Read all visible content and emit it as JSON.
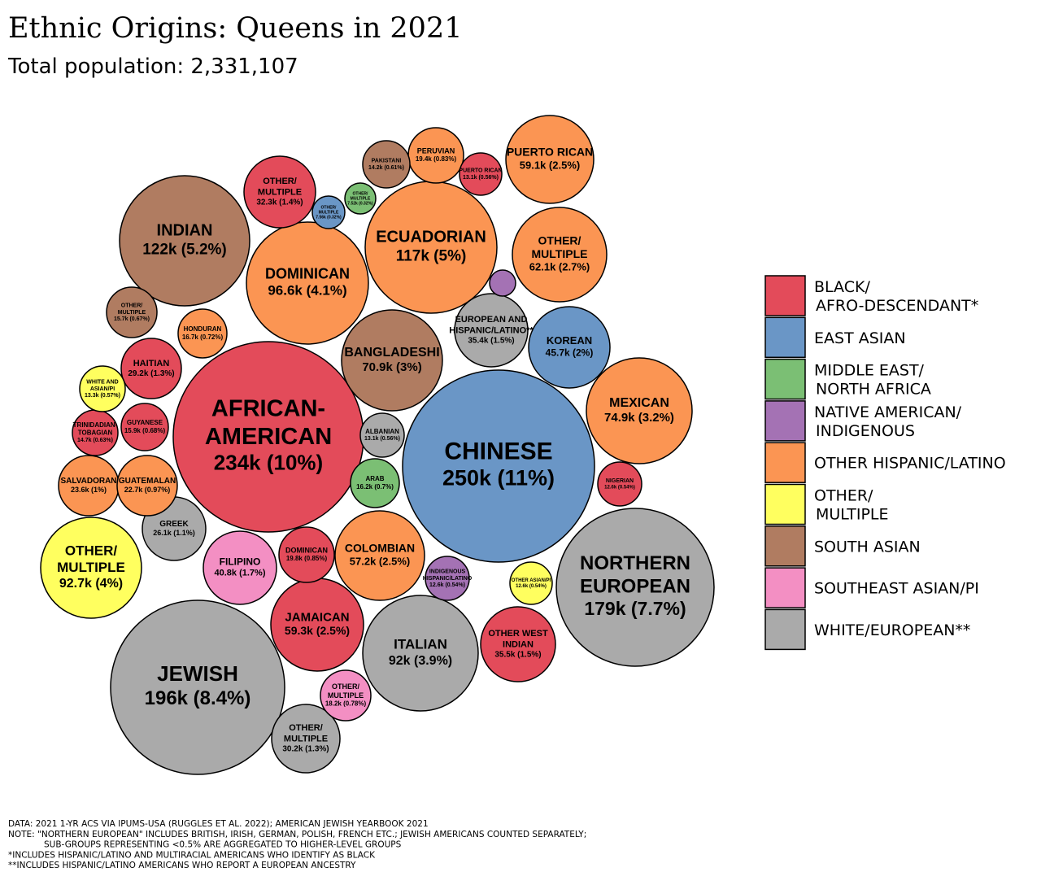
{
  "title": "Ethnic Origins: Queens in 2021",
  "subtitle": "Total population: 2,331,107",
  "colors": {
    "black": "#e34b5a",
    "east_asian": "#6a96c6",
    "mena": "#7bbf74",
    "native": "#a472b4",
    "hispanic": "#fb9553",
    "other": "#ffff5f",
    "south_asian": "#b07c61",
    "southeast_asian": "#f38fc3",
    "white": "#aaaaaa"
  },
  "legend": [
    {
      "group": "black",
      "lines": [
        "BLACK/",
        "AFRO-DESCENDANT*"
      ]
    },
    {
      "group": "east_asian",
      "lines": [
        "EAST ASIAN"
      ]
    },
    {
      "group": "mena",
      "lines": [
        "MIDDLE EAST/",
        "NORTH AFRICA"
      ]
    },
    {
      "group": "native",
      "lines": [
        "NATIVE AMERICAN/",
        "INDIGENOUS"
      ]
    },
    {
      "group": "hispanic",
      "lines": [
        "OTHER HISPANIC/LATINO"
      ]
    },
    {
      "group": "other",
      "lines": [
        "OTHER/",
        "MULTIPLE"
      ]
    },
    {
      "group": "south_asian",
      "lines": [
        "SOUTH ASIAN"
      ]
    },
    {
      "group": "southeast_asian",
      "lines": [
        "SOUTHEAST ASIAN/PI"
      ]
    },
    {
      "group": "white",
      "lines": [
        "WHITE/EUROPEAN**"
      ]
    }
  ],
  "notes": [
    "DATA: 2021 1-YR ACS VIA IPUMS-USA (RUGGLES ET AL. 2022); AMERICAN JEWISH YEARBOOK 2021",
    "NOTE: \"NORTHERN EUROPEAN\" INCLUDES BRITISH, IRISH, GERMAN, POLISH, FRENCH ETC.; JEWISH AMERICANS COUNTED SEPARATELY;",
    "SUB-GROUPS REPRESENTING <0.5% ARE AGGREGATED TO HIGHER-LEVEL GROUPS",
    "*INCLUDES HISPANIC/LATINO AND MULTIRACIAL AMERICANS WHO IDENTIFY AS BLACK",
    "**INCLUDES HISPANIC/LATINO AMERICANS WHO REPORT A EUROPEAN ANCESTRY"
  ],
  "chart_data": {
    "type": "packed-bubble",
    "title": "Ethnic Origins: Queens in 2021",
    "subtitle": "Total population: 2,331,107",
    "bubbles": [
      {
        "label": "CHINESE",
        "value": "250k (11%)",
        "group": "east_asian"
      },
      {
        "label": "AFRICAN-\nAMERICAN",
        "value": "234k (10%)",
        "group": "black"
      },
      {
        "label": "JEWISH",
        "value": "196k (8.4%)",
        "group": "white"
      },
      {
        "label": "NORTHERN\nEUROPEAN",
        "value": "179k (7.7%)",
        "group": "white"
      },
      {
        "label": "INDIAN",
        "value": "122k (5.2%)",
        "group": "south_asian"
      },
      {
        "label": "ECUADORIAN",
        "value": "117k (5%)",
        "group": "hispanic"
      },
      {
        "label": "DOMINICAN",
        "value": "96.6k (4.1%)",
        "group": "hispanic"
      },
      {
        "label": "OTHER/\nMULTIPLE",
        "value": "92.7k (4%)",
        "group": "other"
      },
      {
        "label": "ITALIAN",
        "value": "92k (3.9%)",
        "group": "white"
      },
      {
        "label": "MEXICAN",
        "value": "74.9k (3.2%)",
        "group": "hispanic"
      },
      {
        "label": "BANGLADESHI",
        "value": "70.9k (3%)",
        "group": "south_asian"
      },
      {
        "label": "OTHER/\nMULTIPLE",
        "value": "62.1k (2.7%)",
        "group": "hispanic"
      },
      {
        "label": "JAMAICAN",
        "value": "59.3k (2.5%)",
        "group": "black"
      },
      {
        "label": "PUERTO RICAN",
        "value": "59.1k (2.5%)",
        "group": "hispanic"
      },
      {
        "label": "COLOMBIAN",
        "value": "57.2k (2.5%)",
        "group": "hispanic"
      },
      {
        "label": "KOREAN",
        "value": "45.7k (2%)",
        "group": "east_asian"
      },
      {
        "label": "FILIPINO",
        "value": "40.8k (1.7%)",
        "group": "southeast_asian"
      },
      {
        "label": "OTHER WEST\nINDIAN",
        "value": "35.5k (1.5%)",
        "group": "black"
      },
      {
        "label": "EUROPEAN AND\nHISPANIC/LATINO**",
        "value": "35.4k (1.5%)",
        "group": "white"
      },
      {
        "label": "OTHER/\nMULTIPLE",
        "value": "32.3k (1.4%)",
        "group": "black"
      },
      {
        "label": "OTHER/\nMULTIPLE",
        "value": "30.2k (1.3%)",
        "group": "white"
      },
      {
        "label": "HAITIAN",
        "value": "29.2k (1.3%)",
        "group": "black"
      },
      {
        "label": "GREEK",
        "value": "26.1k (1.1%)",
        "group": "white"
      },
      {
        "label": "SALVADORAN",
        "value": "23.6k (1%)",
        "group": "hispanic"
      },
      {
        "label": "GUATEMALAN",
        "value": "22.7k (0.97%)",
        "group": "hispanic"
      },
      {
        "label": "DOMINICAN",
        "value": "19.8k (0.85%)",
        "group": "black"
      },
      {
        "label": "PERUVIAN",
        "value": "19.4k (0.83%)",
        "group": "hispanic"
      },
      {
        "label": "OTHER/\nMULTIPLE",
        "value": "18.2k (0.78%)",
        "group": "southeast_asian"
      },
      {
        "label": "HONDURAN",
        "value": "16.7k (0.72%)",
        "group": "hispanic"
      },
      {
        "label": "ARAB",
        "value": "16.2k (0.7%)",
        "group": "mena"
      },
      {
        "label": "GUYANESE",
        "value": "15.9k (0.68%)",
        "group": "black"
      },
      {
        "label": "OTHER/\nMULTIPLE",
        "value": "15.7k (0.67%)",
        "group": "south_asian"
      },
      {
        "label": "TRINIDADIAN-\nTOBAGIAN",
        "value": "14.7k (0.63%)",
        "group": "black"
      },
      {
        "label": "PAKISTANI",
        "value": "14.2k (0.61%)",
        "group": "south_asian"
      },
      {
        "label": "WHITE AND\nASIAN/PI",
        "value": "13.3k (0.57%)",
        "group": "other"
      },
      {
        "label": "PUERTO RICAN",
        "value": "13.1k (0.56%)",
        "group": "black"
      },
      {
        "label": "ALBANIAN",
        "value": "13.1k (0.56%)",
        "group": "white"
      },
      {
        "label": "INDIGENOUS\nHISPANIC/LATINO",
        "value": "12.6k (0.54%)",
        "group": "native"
      },
      {
        "label": "OTHER ASIAN/PI",
        "value": "12.6k (0.54%)",
        "group": "other"
      },
      {
        "label": "NIGERIAN",
        "value": "12.6k (0.54%)",
        "group": "black"
      },
      {
        "label": "OTHER/\nMULTIPLE",
        "value": "7.56k (0.32%)",
        "group": "east_asian"
      },
      {
        "label": "OTHER/\nMULTIPLE",
        "value": "7.52k (0.32%)",
        "group": "mena"
      },
      {
        "label": "",
        "value": "",
        "group": "native"
      }
    ]
  }
}
